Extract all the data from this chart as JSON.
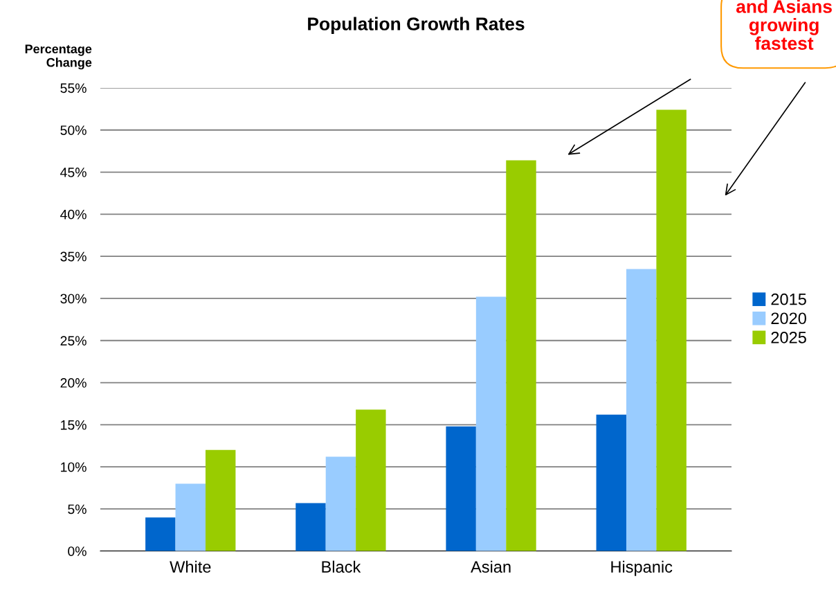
{
  "chart_data": {
    "type": "bar",
    "title": "Population Growth Rates",
    "ylabel": "Percentage\nChange",
    "categories": [
      "White",
      "Black",
      "Asian",
      "Hispanic"
    ],
    "series": [
      {
        "name": "2015",
        "color": "#0066cc",
        "values": [
          4.0,
          5.7,
          14.8,
          16.2
        ]
      },
      {
        "name": "2020",
        "color": "#99ccff",
        "values": [
          8.0,
          11.2,
          30.2,
          33.5
        ]
      },
      {
        "name": "2025",
        "color": "#99cc00",
        "values": [
          12.0,
          16.8,
          46.4,
          52.4
        ]
      }
    ],
    "ylim": [
      0,
      55
    ],
    "yticks": [
      {
        "value": 0,
        "label": "0%"
      },
      {
        "value": 5,
        "label": "5%"
      },
      {
        "value": 10,
        "label": "10%"
      },
      {
        "value": 15,
        "label": "15%"
      },
      {
        "value": 20,
        "label": "20%"
      },
      {
        "value": 25,
        "label": "25%"
      },
      {
        "value": 30,
        "label": "30%"
      },
      {
        "value": 35,
        "label": "35%"
      },
      {
        "value": 40,
        "label": "40%"
      },
      {
        "value": 45,
        "label": "45%"
      },
      {
        "value": 50,
        "label": "50%"
      },
      {
        "value": 55,
        "label": "55%"
      }
    ],
    "grid": "y",
    "legend": "right",
    "annotations": [
      "and Asians\ngrowing\nfastest"
    ]
  }
}
